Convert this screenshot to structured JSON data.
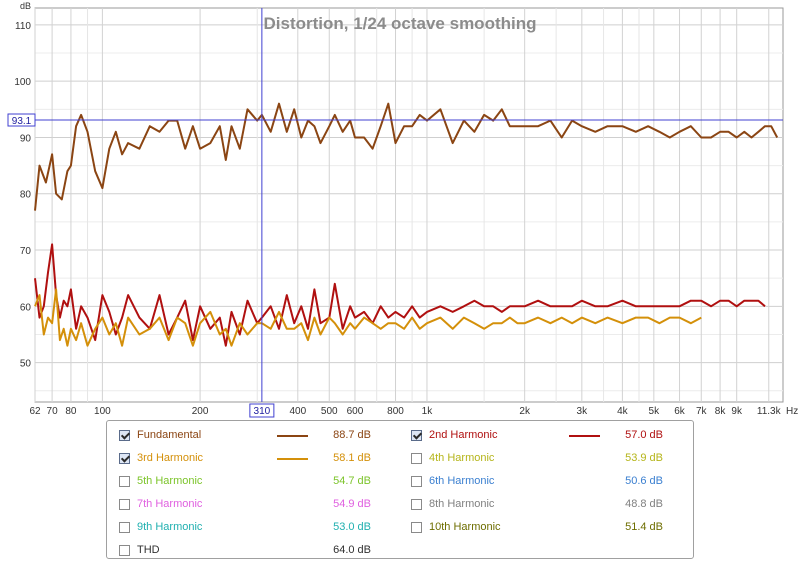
{
  "chart_data": {
    "type": "line",
    "title": "Distortion, 1/24 octave smoothing",
    "ylabel": "dB",
    "xunit": "Hz",
    "xscale": "log",
    "xlim": [
      62,
      12500
    ],
    "ylim": [
      43,
      113
    ],
    "grid": true,
    "x_ticks": [
      {
        "v": 62,
        "label": "62"
      },
      {
        "v": 70,
        "label": "70"
      },
      {
        "v": 80,
        "label": "80"
      },
      {
        "v": 100,
        "label": "100"
      },
      {
        "v": 200,
        "label": "200"
      },
      {
        "v": 400,
        "label": "400"
      },
      {
        "v": 500,
        "label": "500"
      },
      {
        "v": 600,
        "label": "600"
      },
      {
        "v": 800,
        "label": "800"
      },
      {
        "v": 1000,
        "label": "1k"
      },
      {
        "v": 2000,
        "label": "2k"
      },
      {
        "v": 3000,
        "label": "3k"
      },
      {
        "v": 4000,
        "label": "4k"
      },
      {
        "v": 5000,
        "label": "5k"
      },
      {
        "v": 6000,
        "label": "6k"
      },
      {
        "v": 7000,
        "label": "7k"
      },
      {
        "v": 8000,
        "label": "8k"
      },
      {
        "v": 9000,
        "label": "9k"
      },
      {
        "v": 11300,
        "label": "11.3k"
      }
    ],
    "x_minor_grid": [
      90,
      300,
      700,
      900,
      1500,
      2500,
      3500,
      4500
    ],
    "y_ticks": [
      50,
      60,
      70,
      80,
      90,
      100,
      110
    ],
    "cursor": {
      "x": 310,
      "y": 93.1,
      "x_label": "310",
      "y_label": "93.1"
    },
    "series": [
      {
        "name": "Fundamental",
        "color": "#8b4513",
        "x": [
          62,
          64,
          67,
          70,
          72,
          75,
          78,
          80,
          83,
          86,
          90,
          95,
          100,
          105,
          110,
          115,
          120,
          130,
          140,
          150,
          160,
          170,
          180,
          190,
          200,
          215,
          230,
          240,
          250,
          265,
          280,
          300,
          310,
          330,
          350,
          370,
          390,
          410,
          430,
          450,
          470,
          500,
          520,
          550,
          580,
          600,
          640,
          680,
          720,
          760,
          800,
          850,
          900,
          950,
          1000,
          1100,
          1200,
          1300,
          1400,
          1500,
          1600,
          1700,
          1800,
          1900,
          2000,
          2200,
          2400,
          2600,
          2800,
          3000,
          3300,
          3600,
          4000,
          4400,
          4800,
          5200,
          5600,
          6000,
          6500,
          7000,
          7500,
          8000,
          8500,
          9000,
          9500,
          10000,
          10500,
          11000,
          11500,
          12000
        ],
        "y": [
          77,
          85,
          82,
          87,
          80,
          79,
          84,
          85,
          92,
          94,
          91,
          84,
          81,
          88,
          91,
          87,
          89,
          88,
          92,
          91,
          93,
          93,
          88,
          92,
          88,
          89,
          92,
          86,
          92,
          88,
          95,
          93,
          94,
          91,
          96,
          91,
          95,
          90,
          93,
          92,
          89,
          92,
          94,
          91,
          93,
          90,
          90,
          88,
          92,
          96,
          89,
          92,
          92,
          94,
          93,
          95,
          89,
          93,
          91,
          94,
          93,
          95,
          92,
          92,
          92,
          92,
          93,
          90,
          93,
          92,
          91,
          92,
          92,
          91,
          92,
          91,
          90,
          91,
          92,
          90,
          90,
          91,
          91,
          90,
          91,
          90,
          91,
          92,
          92,
          90
        ]
      },
      {
        "name": "2nd Harmonic",
        "color": "#b01010",
        "x": [
          62,
          64,
          66,
          68,
          70,
          72,
          74,
          76,
          78,
          80,
          83,
          86,
          90,
          95,
          100,
          105,
          110,
          115,
          120,
          130,
          140,
          150,
          160,
          170,
          180,
          190,
          200,
          215,
          230,
          240,
          250,
          265,
          280,
          300,
          310,
          330,
          350,
          370,
          390,
          410,
          430,
          450,
          470,
          500,
          520,
          550,
          580,
          600,
          640,
          680,
          720,
          760,
          800,
          850,
          900,
          950,
          1000,
          1100,
          1200,
          1300,
          1400,
          1500,
          1600,
          1700,
          1800,
          1900,
          2000,
          2200,
          2400,
          2600,
          2800,
          3000,
          3300,
          3600,
          4000,
          4400,
          4800,
          5200,
          5600,
          6000,
          6500,
          7000,
          7500,
          8000,
          8500,
          9000,
          9500,
          10000,
          10500,
          11000
        ],
        "y": [
          65,
          58,
          60,
          66,
          71,
          62,
          58,
          61,
          60,
          63,
          56,
          60,
          58,
          54,
          62,
          59,
          55,
          58,
          62,
          58,
          56,
          62,
          55,
          58,
          61,
          54,
          60,
          56,
          58,
          53,
          59,
          55,
          61,
          57,
          58,
          60,
          56,
          62,
          57,
          60,
          56,
          63,
          57,
          58,
          64,
          56,
          60,
          58,
          59,
          57,
          60,
          58,
          59,
          58,
          60,
          58,
          59,
          60,
          59,
          60,
          61,
          60,
          60,
          59,
          60,
          60,
          60,
          61,
          60,
          60,
          60,
          61,
          60,
          60,
          61,
          60,
          60,
          60,
          60,
          60,
          61,
          61,
          60,
          61,
          61,
          60,
          61,
          61,
          61,
          60
        ]
      },
      {
        "name": "3rd Harmonic",
        "color": "#d4900a",
        "x": [
          62,
          64,
          66,
          68,
          70,
          72,
          74,
          76,
          78,
          80,
          83,
          86,
          90,
          95,
          100,
          105,
          110,
          115,
          120,
          130,
          140,
          150,
          160,
          170,
          180,
          190,
          200,
          215,
          230,
          240,
          250,
          265,
          280,
          300,
          310,
          330,
          350,
          370,
          390,
          410,
          430,
          450,
          470,
          500,
          520,
          550,
          580,
          600,
          640,
          680,
          720,
          760,
          800,
          850,
          900,
          950,
          1000,
          1100,
          1200,
          1300,
          1400,
          1500,
          1600,
          1700,
          1800,
          1900,
          2000,
          2200,
          2400,
          2600,
          2800,
          3000,
          3300,
          3600,
          4000,
          4400,
          4800,
          5200,
          5600,
          6000,
          6500,
          7000
        ],
        "y": [
          60,
          62,
          55,
          58,
          57,
          63,
          54,
          56,
          53,
          56,
          54,
          57,
          53,
          56,
          58,
          55,
          57,
          53,
          58,
          55,
          56,
          58,
          54,
          58,
          57,
          53,
          57,
          59,
          55,
          56,
          53,
          57,
          55,
          57,
          57,
          56,
          59,
          56,
          56,
          57,
          54,
          58,
          55,
          58,
          57,
          55,
          57,
          56,
          58,
          57,
          56,
          57,
          57,
          56,
          58,
          56,
          57,
          58,
          56,
          58,
          57,
          56,
          57,
          57,
          58,
          57,
          57,
          58,
          57,
          58,
          57,
          58,
          57,
          58,
          57,
          58,
          58,
          57,
          58,
          58,
          57,
          58
        ]
      }
    ]
  },
  "legend": [
    {
      "label": "Fundamental",
      "value": "88.7 dB",
      "checked": true,
      "color": "#8b4513",
      "show_line": true
    },
    {
      "label": "2nd Harmonic",
      "value": "57.0 dB",
      "checked": true,
      "color": "#b01010",
      "show_line": true
    },
    {
      "label": "3rd Harmonic",
      "value": "58.1 dB",
      "checked": true,
      "color": "#d4900a",
      "show_line": true
    },
    {
      "label": "4th Harmonic",
      "value": "53.9 dB",
      "checked": false,
      "color": "#b5b51a",
      "show_line": false
    },
    {
      "label": "5th Harmonic",
      "value": "54.7 dB",
      "checked": false,
      "color": "#7cc42a",
      "show_line": false
    },
    {
      "label": "6th Harmonic",
      "value": "50.6 dB",
      "checked": false,
      "color": "#3a7fd0",
      "show_line": false
    },
    {
      "label": "7th Harmonic",
      "value": "54.9 dB",
      "checked": false,
      "color": "#e060e0",
      "show_line": false
    },
    {
      "label": "8th Harmonic",
      "value": "48.8 dB",
      "checked": false,
      "color": "#808080",
      "show_line": false
    },
    {
      "label": "9th Harmonic",
      "value": "53.0 dB",
      "checked": false,
      "color": "#20b0b0",
      "show_line": false
    },
    {
      "label": "10th Harmonic",
      "value": "51.4 dB",
      "checked": false,
      "color": "#6e6e00",
      "show_line": false
    },
    {
      "label": "THD",
      "value": "64.0 dB",
      "checked": false,
      "color": "#303030",
      "show_line": false
    }
  ]
}
